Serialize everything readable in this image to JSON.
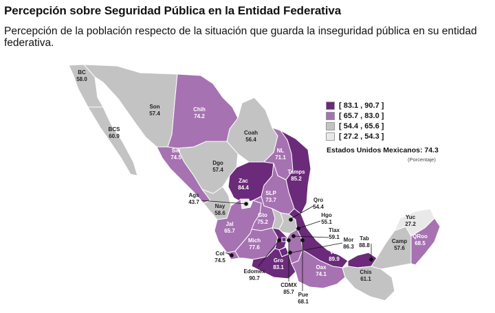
{
  "header": {
    "title": "Percepción sobre Seguridad Pública en la Entidad Federativa",
    "subtitle": "Percepción de la población respecto de la situación que guarda la inseguridad pública en su entidad federativa."
  },
  "legend": {
    "items": [
      {
        "label": "[ 83.1 , 90.7 ]",
        "color": "#6b2a7a"
      },
      {
        "label": "[ 65.7 , 83.0 ]",
        "color": "#a672b1"
      },
      {
        "label": "[ 54.4 , 65.6 ]",
        "color": "#c3c3c3"
      },
      {
        "label": "[ 27.2 , 54.3 ]",
        "color": "#e9e9e9"
      }
    ],
    "national_label": "Estados Unidos Mexicanos:",
    "national_value": "74.3",
    "unit_note": "(Porcentaje)"
  },
  "states": [
    {
      "abbr": "BC",
      "value": "58.0"
    },
    {
      "abbr": "Son",
      "value": "57.4"
    },
    {
      "abbr": "Chih",
      "value": "74.2"
    },
    {
      "abbr": "BCS",
      "value": "60.9"
    },
    {
      "abbr": "Coah",
      "value": "56.4"
    },
    {
      "abbr": "Sin",
      "value": "74.5"
    },
    {
      "abbr": "Dgo",
      "value": "57.4"
    },
    {
      "abbr": "NL",
      "value": "71.1"
    },
    {
      "abbr": "Tamps",
      "value": "85.2"
    },
    {
      "abbr": "Zac",
      "value": "84.4"
    },
    {
      "abbr": "SLP",
      "value": "73.7"
    },
    {
      "abbr": "Ags",
      "value": "43.7"
    },
    {
      "abbr": "Nay",
      "value": "58.6"
    },
    {
      "abbr": "Qro",
      "value": "54.4"
    },
    {
      "abbr": "Gto",
      "value": "75.2"
    },
    {
      "abbr": "Hgo",
      "value": "55.1"
    },
    {
      "abbr": "Jal",
      "value": "65.7"
    },
    {
      "abbr": "Tlax",
      "value": "59.1"
    },
    {
      "abbr": "Mich",
      "value": "77.6"
    },
    {
      "abbr": "Mor",
      "value": "86.3"
    },
    {
      "abbr": "Col",
      "value": "74.5"
    },
    {
      "abbr": "Gro",
      "value": "83.1"
    },
    {
      "abbr": "Ver",
      "value": "89.9"
    },
    {
      "abbr": "Oax",
      "value": "74.1"
    },
    {
      "abbr": "Edomex",
      "value": "90.7"
    },
    {
      "abbr": "CDMX",
      "value": "85.7"
    },
    {
      "abbr": "Pue",
      "value": "68.1"
    },
    {
      "abbr": "Tab",
      "value": "88.8"
    },
    {
      "abbr": "Chis",
      "value": "61.1"
    },
    {
      "abbr": "Camp",
      "value": "57.6"
    },
    {
      "abbr": "Yuc",
      "value": "27.2"
    },
    {
      "abbr": "QRoo",
      "value": "68.5"
    }
  ]
}
